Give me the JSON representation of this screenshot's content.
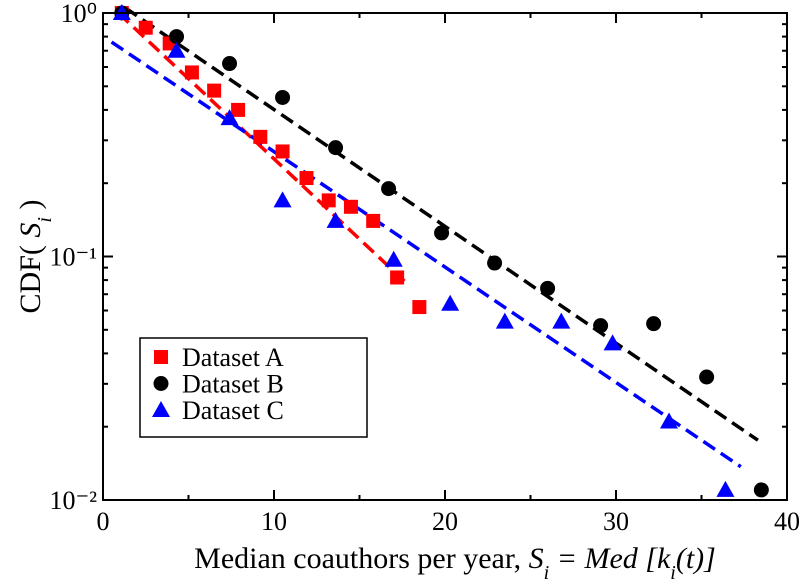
{
  "chart_data": {
    "type": "scatter",
    "ylabel": [
      {
        "text": "CDF( "
      },
      {
        "text": "S",
        "italic": true
      },
      {
        "text": "i",
        "italic": true,
        "sub": true
      },
      {
        "text": " )"
      }
    ],
    "xlabel": [
      {
        "text": "Median coauthors per year, "
      },
      {
        "text": "S",
        "italic": true
      },
      {
        "text": "i",
        "italic": true,
        "sub": true
      },
      {
        "text": " = Med [k",
        "italic": true
      },
      {
        "text": "i",
        "italic": true,
        "sub": true
      },
      {
        "text": "(t)]",
        "italic": true
      }
    ],
    "xlim": [
      0,
      40
    ],
    "ylim": [
      0.01,
      1
    ],
    "log_y": true,
    "xticks": [
      0,
      10,
      20,
      30,
      40
    ],
    "xminorticks": [
      5,
      15,
      25,
      35
    ],
    "yticks": [
      {
        "value": 0.01,
        "label": "10⁻²"
      },
      {
        "value": 0.1,
        "label": "10⁻¹"
      },
      {
        "value": 1,
        "label": "10⁰"
      }
    ],
    "yminorticks": [
      0.02,
      0.03,
      0.04,
      0.05,
      0.06,
      0.07,
      0.08,
      0.09,
      0.2,
      0.3,
      0.4,
      0.5,
      0.6,
      0.7,
      0.8,
      0.9
    ],
    "legend_position": "lower left",
    "series": [
      {
        "name": "Dataset A",
        "color": "#ff0000",
        "marker": "square",
        "x": [
          1.1,
          2.5,
          3.9,
          5.2,
          6.5,
          7.9,
          9.2,
          10.5,
          11.9,
          13.2,
          14.5,
          15.8,
          17.2,
          18.5
        ],
        "values": [
          1.0,
          0.87,
          0.75,
          0.57,
          0.48,
          0.4,
          0.31,
          0.27,
          0.21,
          0.17,
          0.16,
          0.14,
          0.082,
          0.062
        ],
        "fit": {
          "x": [
            0.9,
            17.9
          ],
          "y": [
            1.0,
            0.076
          ]
        }
      },
      {
        "name": "Dataset B",
        "color": "#000000",
        "marker": "circle",
        "x": [
          1.1,
          4.3,
          7.4,
          10.5,
          13.6,
          16.7,
          19.8,
          22.9,
          26.0,
          29.1,
          32.2,
          35.3,
          38.5
        ],
        "values": [
          1.0,
          0.8,
          0.62,
          0.45,
          0.28,
          0.19,
          0.125,
          0.094,
          0.074,
          0.052,
          0.053,
          0.032,
          0.011
        ],
        "fit": {
          "x": [
            1.3,
            38.3
          ],
          "y": [
            1.05,
            0.0176
          ]
        }
      },
      {
        "name": "Dataset C",
        "color": "#0000ff",
        "marker": "triangle",
        "x": [
          1.1,
          4.3,
          7.4,
          10.5,
          13.6,
          17.0,
          20.3,
          23.5,
          26.8,
          29.8,
          33.1,
          36.4
        ],
        "values": [
          1.0,
          0.7,
          0.37,
          0.17,
          0.14,
          0.097,
          0.064,
          0.054,
          0.054,
          0.044,
          0.021,
          0.011
        ],
        "fit": {
          "x": [
            0.5,
            37.3
          ],
          "y": [
            0.76,
            0.0137
          ]
        }
      }
    ]
  }
}
